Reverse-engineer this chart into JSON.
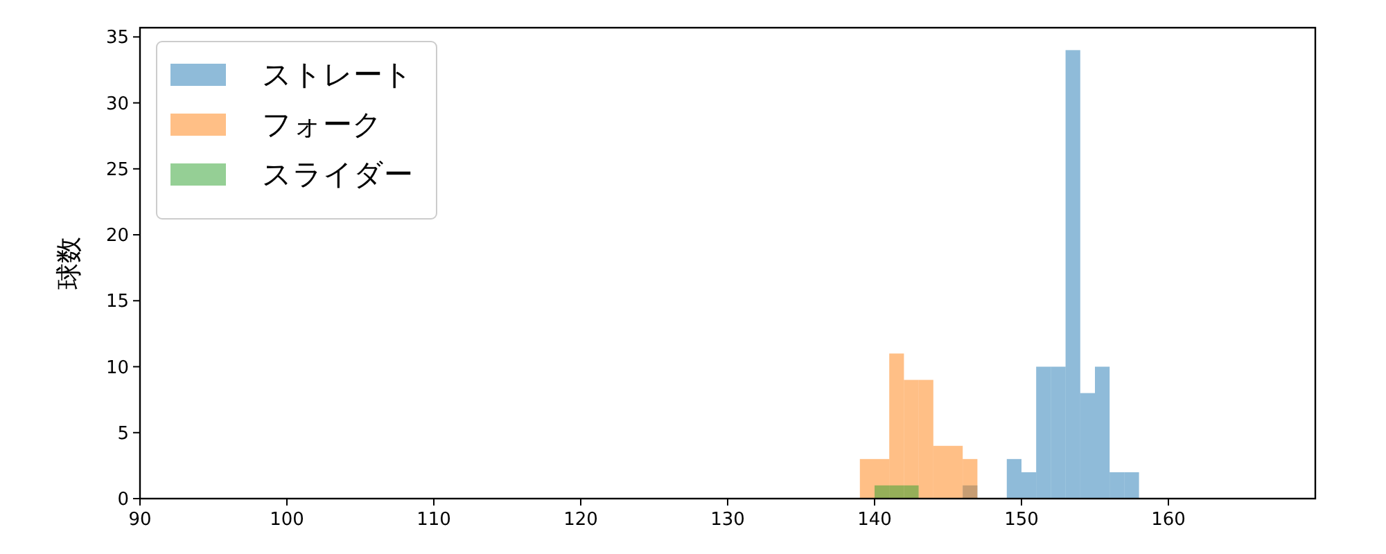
{
  "chart_data": {
    "type": "histogram",
    "ylabel": "球数",
    "xlim": [
      90,
      170
    ],
    "ylim": [
      0,
      35.7
    ],
    "xticks": [
      90,
      100,
      110,
      120,
      130,
      140,
      150,
      160
    ],
    "yticks": [
      0,
      5,
      10,
      15,
      20,
      25,
      30,
      35
    ],
    "legend": "top left",
    "bins": [
      139,
      140,
      141,
      142,
      143,
      144,
      145,
      146,
      147,
      148,
      149,
      150,
      151,
      152,
      153,
      154,
      155,
      156,
      157,
      158
    ],
    "series": [
      {
        "name": "ストレート",
        "color": "#1f77b4",
        "values": [
          0,
          0,
          0,
          0,
          0,
          0,
          0,
          1,
          0,
          0,
          3,
          2,
          10,
          10,
          34,
          8,
          10,
          2,
          2
        ]
      },
      {
        "name": "フォーク",
        "color": "#ff7f0e",
        "values": [
          3,
          3,
          11,
          9,
          9,
          4,
          4,
          3,
          0,
          0,
          0,
          0,
          0,
          0,
          0,
          0,
          0,
          0,
          0
        ]
      },
      {
        "name": "スライダー",
        "color": "#2ca02c",
        "values": [
          0,
          1,
          1,
          1,
          0,
          0,
          0,
          0,
          0,
          0,
          0,
          0,
          0,
          0,
          0,
          0,
          0,
          0,
          0
        ]
      }
    ]
  }
}
